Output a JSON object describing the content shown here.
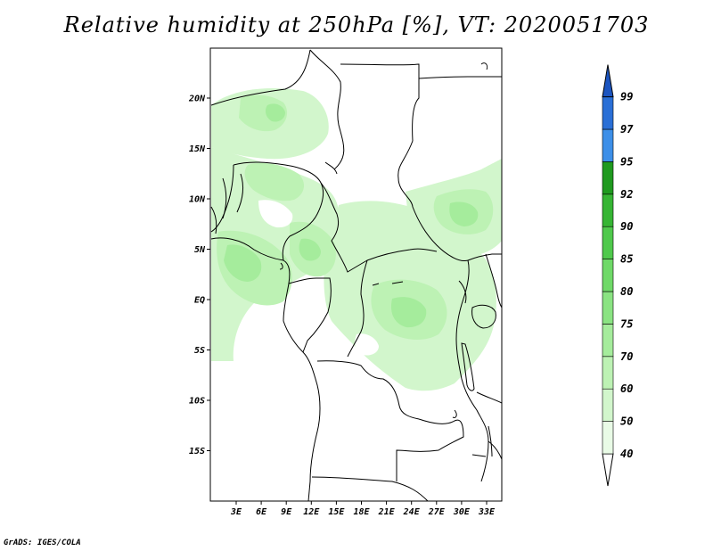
{
  "title": "Relative humidity at 250hPa [%], VT: 2020051703",
  "credit": "GrADS: IGES/COLA",
  "map": {
    "lon_range": [
      0,
      35
    ],
    "lat_range": [
      -20,
      25
    ],
    "y_tick_labels": [
      "20N",
      "15N",
      "10N",
      "5N",
      "EQ",
      "5S",
      "10S",
      "15S"
    ],
    "x_tick_labels": [
      "3E",
      "6E",
      "9E",
      "12E",
      "15E",
      "18E",
      "21E",
      "24E",
      "27E",
      "30E",
      "33E"
    ]
  },
  "colorbar": {
    "levels": [
      "40",
      "50",
      "60",
      "70",
      "75",
      "80",
      "85",
      "90",
      "92",
      "95",
      "97",
      "99"
    ],
    "colors": {
      "below_40": "#ffffff",
      "40_50": "#e9fbe6",
      "50_60": "#d2f6cc",
      "60_70": "#bdf2b4",
      "70_75": "#a5ec9c",
      "75_80": "#8ae382",
      "80_85": "#6fd968",
      "85_90": "#4fc94c",
      "90_92": "#36b534",
      "92_95": "#1f9a1f",
      "95_97": "#3d8fe8",
      "97_99": "#2a6fd6",
      "above_99": "#1c55c0"
    }
  }
}
